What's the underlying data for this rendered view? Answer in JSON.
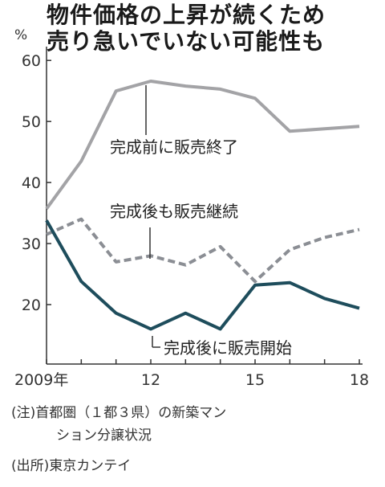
{
  "title_lines": [
    "物件価格の上昇が続くため",
    "売り急いでいない可能性も"
  ],
  "chart_data": {
    "type": "line",
    "title": "物件価格の上昇が続くため売り急いでいない可能性も",
    "ylabel": "%",
    "xlabel": "",
    "x": [
      2009,
      2010,
      2011,
      2012,
      2013,
      2014,
      2015,
      2016,
      2017,
      2018
    ],
    "x_tick_values": [
      2009,
      2012,
      2015,
      2018
    ],
    "x_tick_labels": [
      "2009年",
      "12",
      "15",
      "18"
    ],
    "y_ticks": [
      20,
      30,
      40,
      50,
      60
    ],
    "ylim": [
      10,
      62
    ],
    "grid": false,
    "series": [
      {
        "name": "完成前に販売終了",
        "color": "#a3a3a6",
        "dash": "solid",
        "values": [
          35.7,
          43.5,
          55.0,
          56.6,
          55.8,
          55.3,
          53.8,
          48.4,
          48.8,
          49.2
        ]
      },
      {
        "name": "完成後も販売継続",
        "color": "#8b8e94",
        "dash": "dashed",
        "values": [
          31.5,
          34.0,
          27.0,
          28.0,
          26.5,
          29.5,
          23.8,
          29.0,
          31.0,
          32.3
        ]
      },
      {
        "name": "完成後に販売開始",
        "color": "#1e4d5c",
        "dash": "solid",
        "values": [
          33.8,
          23.8,
          18.6,
          16.0,
          18.6,
          16.0,
          23.2,
          23.6,
          21.0,
          19.4
        ]
      }
    ]
  },
  "notes": {
    "line1": "(注)首都圏（１都３県）の新築マンション分譲状況",
    "line1_a": "(注)首都圏（１都３県）の新築マン",
    "line1_b": "ション分譲状況",
    "source": "(出所)東京カンテイ"
  }
}
